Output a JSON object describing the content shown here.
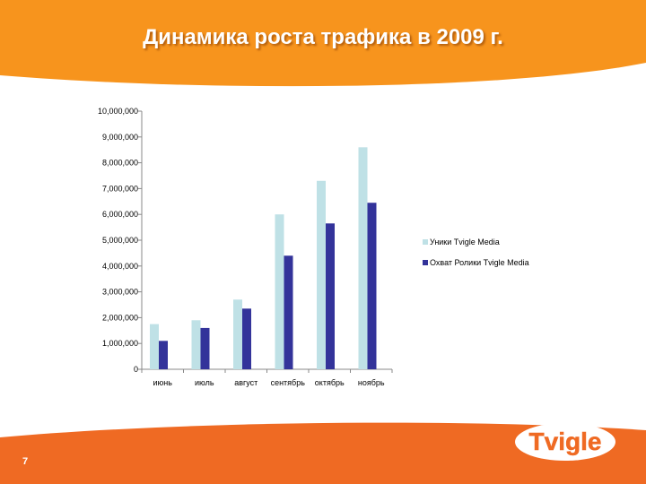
{
  "slide": {
    "title": "Динамика роста трафика в 2009 г.",
    "page_number": "7",
    "logo_text": "Tvigle"
  },
  "colors": {
    "header_orange": "#f7941d",
    "footer_orange": "#ef6a23",
    "series1": "#bfe1e6",
    "series2": "#33339a"
  },
  "chart_data": {
    "type": "bar",
    "categories": [
      "июнь",
      "июль",
      "август",
      "сентябрь",
      "октябрь",
      "ноябрь"
    ],
    "series": [
      {
        "name": "Уники Tvigle Media",
        "values": [
          1750000,
          1900000,
          2700000,
          6000000,
          7300000,
          8600000
        ]
      },
      {
        "name": "Охват Ролики Tvigle Media",
        "values": [
          1100000,
          1600000,
          2350000,
          4400000,
          5650000,
          6450000
        ]
      }
    ],
    "yticks": [
      "0",
      "1,000,000",
      "2,000,000",
      "3,000,000",
      "4,000,000",
      "5,000,000",
      "6,000,000",
      "7,000,000",
      "8,000,000",
      "9,000,000",
      "10,000,000"
    ],
    "ylim": [
      0,
      10000000
    ],
    "grid": false,
    "legend_position": "right"
  }
}
